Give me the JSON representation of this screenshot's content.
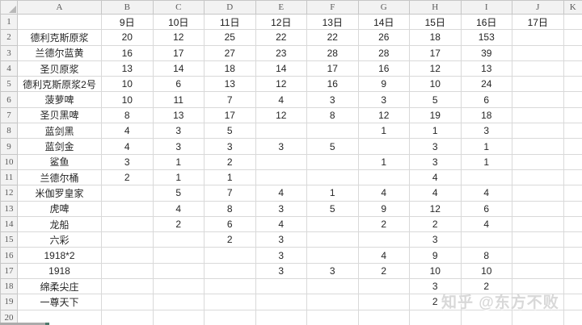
{
  "sheet": {
    "column_letters": [
      "A",
      "B",
      "C",
      "D",
      "E",
      "F",
      "G",
      "H",
      "I",
      "J",
      "K"
    ],
    "date_header": [
      "9日",
      "10日",
      "11日",
      "12日",
      "13日",
      "14日",
      "15日",
      "16日",
      "17日"
    ],
    "rows": [
      {
        "label": "德利克斯原浆",
        "values": [
          "20",
          "12",
          "25",
          "22",
          "22",
          "26",
          "18",
          "153",
          ""
        ]
      },
      {
        "label": "兰德尔蓝黄",
        "values": [
          "16",
          "17",
          "27",
          "23",
          "28",
          "28",
          "17",
          "39",
          ""
        ]
      },
      {
        "label": "圣贝原浆",
        "values": [
          "13",
          "14",
          "18",
          "14",
          "17",
          "16",
          "12",
          "13",
          ""
        ]
      },
      {
        "label": "德利克斯原浆2号",
        "values": [
          "10",
          "6",
          "13",
          "12",
          "16",
          "9",
          "10",
          "24",
          ""
        ]
      },
      {
        "label": "菠萝啤",
        "values": [
          "10",
          "11",
          "7",
          "4",
          "3",
          "3",
          "5",
          "6",
          ""
        ]
      },
      {
        "label": "圣贝黑啤",
        "values": [
          "8",
          "13",
          "17",
          "12",
          "8",
          "12",
          "19",
          "18",
          ""
        ]
      },
      {
        "label": "蓝剑黑",
        "values": [
          "4",
          "3",
          "5",
          "",
          "",
          "1",
          "1",
          "3",
          ""
        ]
      },
      {
        "label": "蓝剑金",
        "values": [
          "4",
          "3",
          "3",
          "3",
          "5",
          "",
          "3",
          "1",
          ""
        ]
      },
      {
        "label": "鲨鱼",
        "values": [
          "3",
          "1",
          "2",
          "",
          "",
          "1",
          "3",
          "1",
          ""
        ]
      },
      {
        "label": "兰德尔桶",
        "values": [
          "2",
          "1",
          "1",
          "",
          "",
          "",
          "4",
          "",
          ""
        ]
      },
      {
        "label": "米伽罗皇家",
        "values": [
          "",
          "5",
          "7",
          "4",
          "1",
          "4",
          "4",
          "4",
          ""
        ]
      },
      {
        "label": "虎啤",
        "values": [
          "",
          "4",
          "8",
          "3",
          "5",
          "9",
          "12",
          "6",
          ""
        ]
      },
      {
        "label": "龙船",
        "values": [
          "",
          "2",
          "6",
          "4",
          "",
          "2",
          "2",
          "4",
          ""
        ]
      },
      {
        "label": "六彩",
        "values": [
          "",
          "",
          "2",
          "3",
          "",
          "",
          "3",
          "",
          ""
        ]
      },
      {
        "label": "1918*2",
        "values": [
          "",
          "",
          "",
          "3",
          "",
          "4",
          "9",
          "8",
          ""
        ]
      },
      {
        "label": "1918",
        "values": [
          "",
          "",
          "",
          "3",
          "3",
          "2",
          "10",
          "10",
          ""
        ]
      },
      {
        "label": "绵柔尖庄",
        "values": [
          "",
          "",
          "",
          "",
          "",
          "",
          "3",
          "2",
          ""
        ]
      },
      {
        "label": "一尊天下",
        "values": [
          "",
          "",
          "",
          "",
          "",
          "",
          "2",
          "",
          ""
        ]
      },
      {
        "label": "",
        "values": [
          "",
          "",
          "",
          "",
          "",
          "",
          "",
          "",
          ""
        ]
      }
    ],
    "visible_row_numbers": 20
  },
  "watermark": "知乎 @东方不败",
  "colors": {
    "grid_line": "#d9d9d9",
    "header_bg": "#f2f2f2",
    "header_border": "#c6c6c6",
    "header_text": "#595959",
    "cell_text": "#262626",
    "watermark_text": "#d8d8d8"
  }
}
